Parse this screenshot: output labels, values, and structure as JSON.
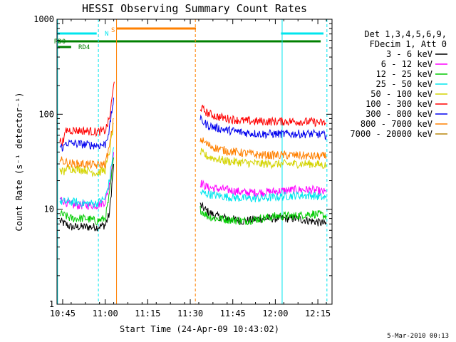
{
  "chart_data": {
    "type": "line",
    "title": "HESSI Observing Summary Count Rates",
    "xlabel": "Start Time (24-Apr-09 10:43:02)",
    "ylabel": "Count Rate (s⁻¹ detector⁻¹)",
    "yscale": "log",
    "ylim": [
      1,
      1000
    ],
    "xlim_minutes": [
      0,
      97
    ],
    "x_ticks": [
      {
        "label": "10:45",
        "t": 2
      },
      {
        "label": "11:00",
        "t": 17
      },
      {
        "label": "11:15",
        "t": 32
      },
      {
        "label": "11:30",
        "t": 47
      },
      {
        "label": "11:45",
        "t": 62
      },
      {
        "label": "12:00",
        "t": 77
      },
      {
        "label": "12:15",
        "t": 92
      }
    ],
    "y_ticks": [
      {
        "label": "1",
        "v": 1
      },
      {
        "label": "10",
        "v": 10
      },
      {
        "label": "100",
        "v": 100
      },
      {
        "label": "1000",
        "v": 1000
      }
    ],
    "grid": false,
    "legend_position": "right",
    "legend_header": [
      "Det 1,3,4,5,6,9,",
      "FDecim 1, Att 0"
    ],
    "footer_timestamp": "5-Mar-2010 00:13",
    "flags": [
      {
        "label": "N",
        "color": "#00e5ee",
        "segments": [
          [
            0,
            14
          ],
          [
            79,
            94
          ]
        ]
      },
      {
        "label": "S",
        "color": "#ff8000",
        "segments": [
          [
            21,
            49
          ]
        ]
      },
      {
        "label": "RD0",
        "color": "#008000",
        "segments": [
          [
            0,
            93
          ]
        ]
      },
      {
        "label": "RD4",
        "color": "#008000",
        "segments": [
          [
            0,
            5
          ]
        ]
      }
    ],
    "vertical_lines": [
      {
        "t": 0.2,
        "color": "#00e5ee",
        "dash": false
      },
      {
        "t": 14.6,
        "color": "#00e5ee",
        "dash": true
      },
      {
        "t": 21.0,
        "color": "#ff8000",
        "dash": false
      },
      {
        "t": 48.8,
        "color": "#ff8000",
        "dash": true
      },
      {
        "t": 79.4,
        "color": "#00e5ee",
        "dash": false
      },
      {
        "t": 95.2,
        "color": "#00e5ee",
        "dash": true
      }
    ],
    "series": [
      {
        "name": "3 - 6 keV",
        "color": "#000000",
        "segments": [
          {
            "x": [
              1,
              5,
              10,
              14,
              17,
              18.5,
              20
            ],
            "y": [
              7.5,
              6.5,
              6.5,
              6.5,
              6.8,
              9,
              30
            ]
          },
          {
            "x": [
              50.5,
              53,
              56,
              60,
              66,
              72,
              78,
              84,
              90,
              95
            ],
            "y": [
              11,
              9.5,
              8.5,
              8,
              7.5,
              8,
              8,
              8,
              7.5,
              7
            ]
          }
        ]
      },
      {
        "name": "6 - 12 keV",
        "color": "#ff00ff",
        "segments": [
          {
            "x": [
              1,
              5,
              10,
              14,
              17,
              18.5,
              20
            ],
            "y": [
              13,
              11,
              11,
              11,
              12,
              18,
              40
            ]
          },
          {
            "x": [
              50.5,
              53,
              56,
              60,
              66,
              72,
              78,
              84,
              90,
              95
            ],
            "y": [
              19,
              17,
              16.5,
              16,
              15,
              15,
              15.5,
              16,
              16,
              15
            ]
          }
        ]
      },
      {
        "name": "12 - 25 keV",
        "color": "#00cc00",
        "segments": [
          {
            "x": [
              1,
              5,
              10,
              14,
              17,
              18.5,
              20
            ],
            "y": [
              9,
              8,
              8,
              7.5,
              8,
              14,
              35
            ]
          },
          {
            "x": [
              50.5,
              53,
              56,
              60,
              66,
              72,
              78,
              84,
              90,
              95
            ],
            "y": [
              10,
              8.5,
              8,
              7.8,
              7.5,
              8,
              8.5,
              8.5,
              9,
              8.5
            ]
          }
        ]
      },
      {
        "name": "25 - 50 keV",
        "color": "#00e5ee",
        "segments": [
          {
            "x": [
              1,
              5,
              10,
              14,
              17,
              18.5,
              20
            ],
            "y": [
              12,
              12,
              11.5,
              11.5,
              13,
              20,
              45
            ]
          },
          {
            "x": [
              50.5,
              53,
              56,
              60,
              66,
              72,
              78,
              84,
              90,
              95
            ],
            "y": [
              15,
              14.5,
              14,
              13.5,
              13,
              13,
              13.5,
              14,
              14,
              13
            ]
          }
        ]
      },
      {
        "name": "50 - 100 keV",
        "color": "#d4d400",
        "segments": [
          {
            "x": [
              1,
              2.5,
              3,
              10,
              14,
              17,
              18.5,
              20
            ],
            "y": [
              27,
              24,
              27,
              26,
              24,
              26,
              40,
              80
            ]
          },
          {
            "x": [
              50.5,
              53,
              56,
              60,
              66,
              72,
              78,
              84,
              90,
              95
            ],
            "y": [
              40,
              36,
              34,
              32,
              31,
              30,
              30,
              30,
              30,
              29
            ]
          }
        ]
      },
      {
        "name": "100 - 300 keV",
        "color": "#ff0000",
        "segments": [
          {
            "x": [
              1,
              2.5,
              3,
              10,
              14,
              17,
              18.5,
              20.2
            ],
            "y": [
              52,
              52,
              68,
              67,
              65,
              67,
              90,
              220
            ]
          },
          {
            "x": [
              50.5,
              53,
              56,
              60,
              66,
              72,
              78,
              84,
              90,
              95
            ],
            "y": [
              118,
              103,
              95,
              90,
              85,
              84,
              84,
              84,
              83,
              80
            ]
          }
        ]
      },
      {
        "name": "300 - 800 keV",
        "color": "#0000ee",
        "segments": [
          {
            "x": [
              1,
              2.5,
              3,
              10,
              14,
              17,
              18.5,
              20
            ],
            "y": [
              45,
              45,
              50,
              48,
              47,
              48,
              70,
              150
            ]
          },
          {
            "x": [
              50.5,
              53,
              56,
              60,
              66,
              72,
              78,
              84,
              90,
              95
            ],
            "y": [
              88,
              77,
              72,
              68,
              64,
              62,
              62,
              62,
              62,
              60
            ]
          }
        ]
      },
      {
        "name": "800 - 7000 keV",
        "color": "#ff8000",
        "segments": [
          {
            "x": [
              1,
              5,
              10,
              14,
              17,
              18.5,
              20
            ],
            "y": [
              33,
              30,
              30,
              29,
              30,
              45,
              90
            ]
          },
          {
            "x": [
              50.5,
              53,
              56,
              60,
              66,
              72,
              78,
              84,
              90,
              95
            ],
            "y": [
              55,
              48,
              44,
              41,
              39,
              37,
              37,
              37,
              36,
              36
            ]
          }
        ]
      },
      {
        "name": "7000 - 20000 keV",
        "color": "#b8860b",
        "segments": []
      }
    ]
  }
}
